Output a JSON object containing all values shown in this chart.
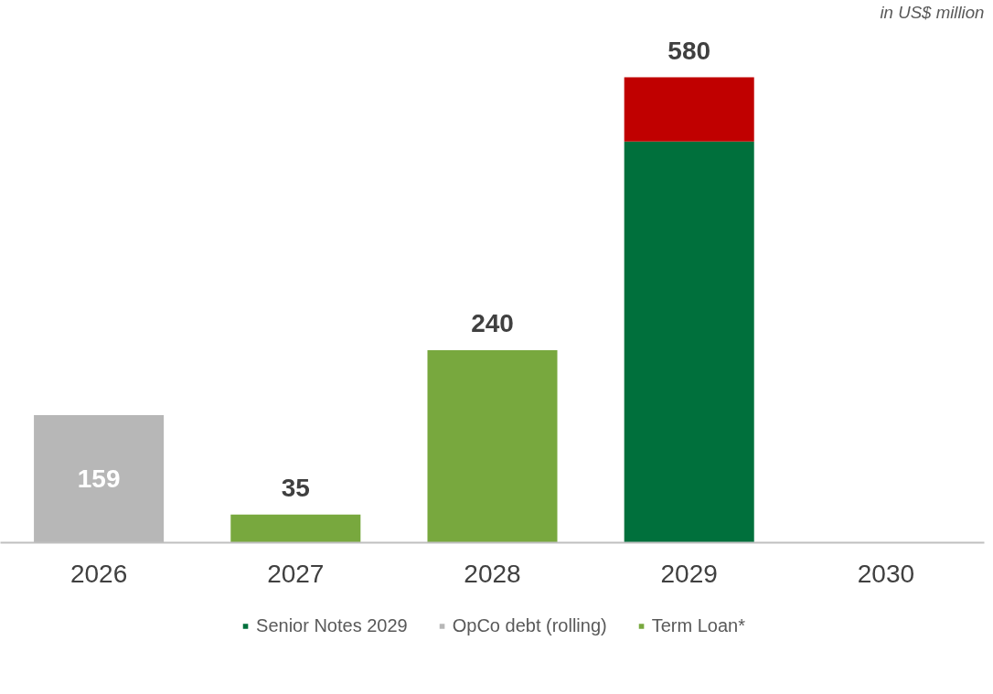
{
  "chart_data": {
    "type": "bar",
    "stacked": true,
    "categories": [
      "2026",
      "2027",
      "2028",
      "2029",
      "2030"
    ],
    "series": [
      {
        "name": "Senior Notes 2029",
        "color": "#00703c",
        "values": [
          null,
          null,
          null,
          500,
          null
        ]
      },
      {
        "name": "OpCo debt (rolling)",
        "color": "#b7b7b7",
        "values": [
          159,
          null,
          null,
          null,
          null
        ],
        "value_labels": [
          "159",
          null,
          null,
          null,
          null
        ]
      },
      {
        "name": "Term Loan*",
        "color": "#78a83e",
        "values": [
          null,
          35,
          240,
          null,
          null
        ]
      },
      {
        "color": "#c00000",
        "values": [
          null,
          null,
          null,
          80,
          null
        ]
      }
    ],
    "totals": [
      null,
      "35",
      "240",
      "580",
      null
    ],
    "annotations": [
      "in US$ million"
    ],
    "legend": "bottom",
    "grid": false
  }
}
